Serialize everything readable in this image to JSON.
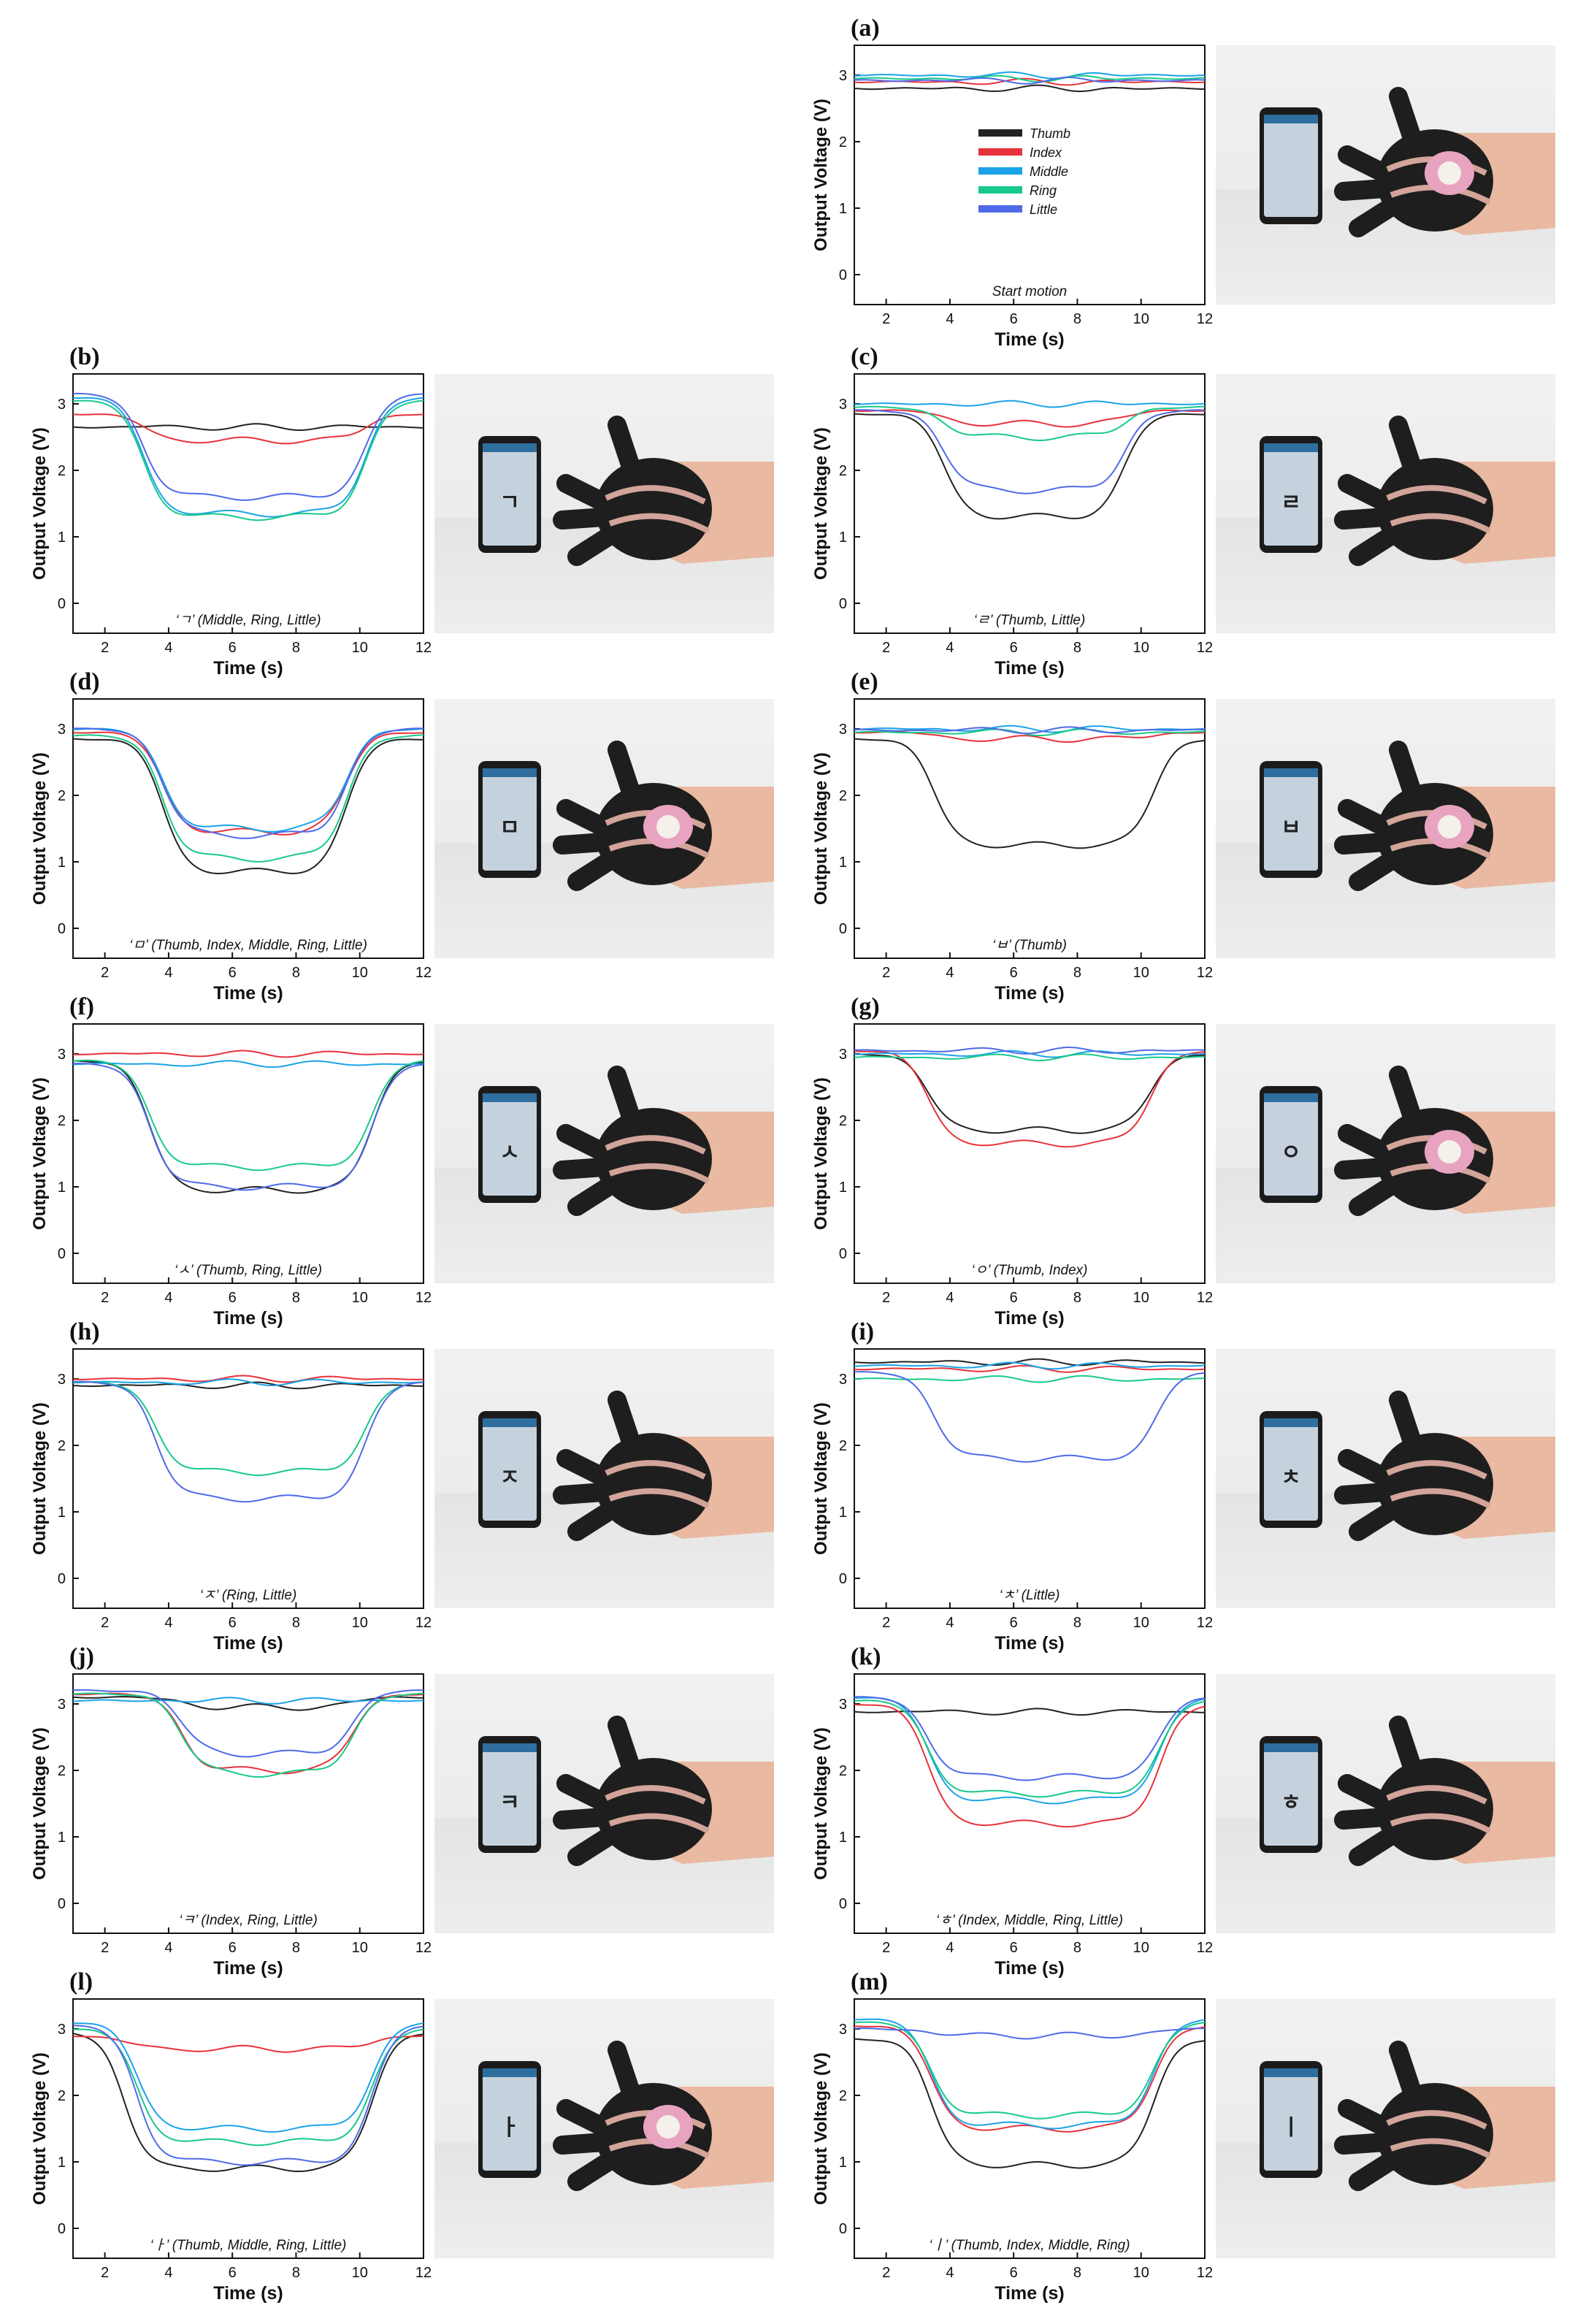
{
  "common": {
    "ylabel": "Output Voltage (V)",
    "xlabel": "Time (s)",
    "xticks": [
      "2",
      "4",
      "6",
      "8",
      "10",
      "12"
    ],
    "yticks": [
      "0",
      "1",
      "2",
      "3"
    ],
    "xlim": [
      1,
      12
    ],
    "ylim": [
      -0.45,
      3.45
    ],
    "colors": {
      "thumb": "#222222",
      "index": "#e8323b",
      "middle": "#1aa3e8",
      "ring": "#17c98a",
      "little": "#4f6ae8"
    }
  },
  "legend": [
    {
      "name": "Thumb",
      "color": "#222222"
    },
    {
      "name": "Index",
      "color": "#e8323b"
    },
    {
      "name": "Middle",
      "color": "#1aa3e8"
    },
    {
      "name": "Ring",
      "color": "#17c98a"
    },
    {
      "name": "Little",
      "color": "#4f6ae8"
    }
  ],
  "chart_data": [
    {
      "letter": "(a)",
      "type": "line",
      "annotation": "Start motion",
      "glyph": "",
      "series": [
        {
          "key": "thumb",
          "base": 2.8,
          "dip": 2.8,
          "t1": 4,
          "t2": 9
        },
        {
          "key": "index",
          "base": 2.9,
          "dip": 2.9,
          "t1": 4,
          "t2": 9
        },
        {
          "key": "middle",
          "base": 3.0,
          "dip": 3.0,
          "t1": 4,
          "t2": 9
        },
        {
          "key": "ring",
          "base": 2.95,
          "dip": 2.95,
          "t1": 4,
          "t2": 9
        },
        {
          "key": "little",
          "base": 2.92,
          "dip": 2.92,
          "t1": 4,
          "t2": 9
        }
      ]
    },
    {
      "letter": "(b)",
      "type": "line",
      "annotation": "‘ㄱ’ (Middle, Ring, Little)",
      "glyph": "ㄱ",
      "series": [
        {
          "key": "thumb",
          "base": 2.65,
          "dip": 2.65,
          "t1": 3.2,
          "t2": 10.2
        },
        {
          "key": "index",
          "base": 2.85,
          "dip": 2.45,
          "t1": 3.2,
          "t2": 10.2
        },
        {
          "key": "middle",
          "base": 3.1,
          "dip": 1.35,
          "t1": 3.2,
          "t2": 10.2
        },
        {
          "key": "ring",
          "base": 3.05,
          "dip": 1.3,
          "t1": 3.2,
          "t2": 10.2
        },
        {
          "key": "little",
          "base": 3.15,
          "dip": 1.6,
          "t1": 3.2,
          "t2": 10.2
        }
      ]
    },
    {
      "letter": "(c)",
      "type": "line",
      "annotation": "‘ㄹ’ (Thumb, Little)",
      "glyph": "ㄹ",
      "series": [
        {
          "key": "thumb",
          "base": 2.85,
          "dip": 1.3,
          "t1": 3.8,
          "t2": 9.5
        },
        {
          "key": "index",
          "base": 2.9,
          "dip": 2.7,
          "t1": 3.8,
          "t2": 9.5
        },
        {
          "key": "middle",
          "base": 3.0,
          "dip": 3.0,
          "t1": 3.8,
          "t2": 9.5
        },
        {
          "key": "ring",
          "base": 2.95,
          "dip": 2.5,
          "t1": 3.8,
          "t2": 9.5
        },
        {
          "key": "little",
          "base": 2.9,
          "dip": 1.7,
          "t1": 3.8,
          "t2": 9.5
        }
      ]
    },
    {
      "letter": "(d)",
      "type": "line",
      "annotation": "‘ㅁ’ (Thumb, Index, Middle, Ring, Little)",
      "glyph": "ㅁ",
      "series": [
        {
          "key": "thumb",
          "base": 2.85,
          "dip": 0.85,
          "t1": 3.8,
          "t2": 9.6
        },
        {
          "key": "index",
          "base": 2.95,
          "dip": 1.45,
          "t1": 3.8,
          "t2": 9.6
        },
        {
          "key": "middle",
          "base": 3.0,
          "dip": 1.5,
          "t1": 3.8,
          "t2": 9.6
        },
        {
          "key": "ring",
          "base": 2.9,
          "dip": 1.05,
          "t1": 3.8,
          "t2": 9.6
        },
        {
          "key": "little",
          "base": 3.0,
          "dip": 1.4,
          "t1": 3.8,
          "t2": 9.6
        }
      ]
    },
    {
      "letter": "(e)",
      "type": "line",
      "annotation": "‘ㅂ’ (Thumb)",
      "glyph": "ㅂ",
      "series": [
        {
          "key": "thumb",
          "base": 2.85,
          "dip": 1.25,
          "t1": 3.5,
          "t2": 10.4
        },
        {
          "key": "index",
          "base": 2.95,
          "dip": 2.85,
          "t1": 3.5,
          "t2": 10.4
        },
        {
          "key": "middle",
          "base": 3.0,
          "dip": 3.0,
          "t1": 3.5,
          "t2": 10.4
        },
        {
          "key": "ring",
          "base": 2.95,
          "dip": 2.95,
          "t1": 3.5,
          "t2": 10.4
        },
        {
          "key": "little",
          "base": 2.98,
          "dip": 2.98,
          "t1": 3.5,
          "t2": 10.4
        }
      ]
    },
    {
      "letter": "(f)",
      "type": "line",
      "annotation": "‘ㅅ’ (Thumb, Ring, Little)",
      "glyph": "ㅅ",
      "series": [
        {
          "key": "thumb",
          "base": 2.9,
          "dip": 0.95,
          "t1": 3.4,
          "t2": 10.4
        },
        {
          "key": "index",
          "base": 3.0,
          "dip": 3.0,
          "t1": 3.4,
          "t2": 10.4
        },
        {
          "key": "middle",
          "base": 2.85,
          "dip": 2.85,
          "t1": 3.4,
          "t2": 10.4
        },
        {
          "key": "ring",
          "base": 2.9,
          "dip": 1.3,
          "t1": 3.4,
          "t2": 10.4
        },
        {
          "key": "little",
          "base": 2.85,
          "dip": 1.0,
          "t1": 3.4,
          "t2": 10.4
        }
      ]
    },
    {
      "letter": "(g)",
      "type": "line",
      "annotation": "‘ㅇ’ (Thumb, Index)",
      "glyph": "ㅇ",
      "series": [
        {
          "key": "thumb",
          "base": 3.0,
          "dip": 1.85,
          "t1": 3.3,
          "t2": 10.3
        },
        {
          "key": "index",
          "base": 3.05,
          "dip": 1.65,
          "t1": 3.3,
          "t2": 10.3
        },
        {
          "key": "middle",
          "base": 3.0,
          "dip": 3.0,
          "t1": 3.3,
          "t2": 10.3
        },
        {
          "key": "ring",
          "base": 2.95,
          "dip": 2.95,
          "t1": 3.3,
          "t2": 10.3
        },
        {
          "key": "little",
          "base": 3.05,
          "dip": 3.05,
          "t1": 3.3,
          "t2": 10.3
        }
      ]
    },
    {
      "letter": "(h)",
      "type": "line",
      "annotation": "‘ㅈ’ (Ring, Little)",
      "glyph": "ㅈ",
      "series": [
        {
          "key": "thumb",
          "base": 2.9,
          "dip": 2.9,
          "t1": 3.6,
          "t2": 10.2
        },
        {
          "key": "index",
          "base": 3.0,
          "dip": 3.0,
          "t1": 3.6,
          "t2": 10.2
        },
        {
          "key": "middle",
          "base": 2.95,
          "dip": 2.95,
          "t1": 3.6,
          "t2": 10.2
        },
        {
          "key": "ring",
          "base": 2.95,
          "dip": 1.6,
          "t1": 3.6,
          "t2": 10.2
        },
        {
          "key": "little",
          "base": 2.95,
          "dip": 1.2,
          "t1": 3.6,
          "t2": 10.2
        }
      ]
    },
    {
      "letter": "(i)",
      "type": "line",
      "annotation": "‘ㅊ’ (Little)",
      "glyph": "ㅊ",
      "series": [
        {
          "key": "thumb",
          "base": 3.25,
          "dip": 3.25,
          "t1": 3.5,
          "t2": 10.5
        },
        {
          "key": "index",
          "base": 3.15,
          "dip": 3.15,
          "t1": 3.5,
          "t2": 10.5
        },
        {
          "key": "middle",
          "base": 3.2,
          "dip": 3.2,
          "t1": 3.5,
          "t2": 10.5
        },
        {
          "key": "ring",
          "base": 3.0,
          "dip": 3.0,
          "t1": 3.5,
          "t2": 10.5
        },
        {
          "key": "little",
          "base": 3.1,
          "dip": 1.8,
          "t1": 3.5,
          "t2": 10.5
        }
      ]
    },
    {
      "letter": "(j)",
      "type": "line",
      "annotation": "‘ㅋ’ (Index, Ring, Little)",
      "glyph": "ㅋ",
      "series": [
        {
          "key": "thumb",
          "base": 3.1,
          "dip": 2.95,
          "t1": 4.4,
          "t2": 9.8
        },
        {
          "key": "index",
          "base": 3.15,
          "dip": 2.0,
          "t1": 4.4,
          "t2": 9.8
        },
        {
          "key": "middle",
          "base": 3.05,
          "dip": 3.05,
          "t1": 4.4,
          "t2": 9.8
        },
        {
          "key": "ring",
          "base": 3.15,
          "dip": 1.95,
          "t1": 4.4,
          "t2": 9.8
        },
        {
          "key": "little",
          "base": 3.2,
          "dip": 2.25,
          "t1": 4.4,
          "t2": 9.8
        }
      ]
    },
    {
      "letter": "(k)",
      "type": "line",
      "annotation": "‘ㅎ’ (Index, Middle, Ring, Little)",
      "glyph": "ㅎ",
      "series": [
        {
          "key": "thumb",
          "base": 2.88,
          "dip": 2.88,
          "t1": 3.3,
          "t2": 10.6
        },
        {
          "key": "index",
          "base": 3.0,
          "dip": 1.2,
          "t1": 3.3,
          "t2": 10.6
        },
        {
          "key": "middle",
          "base": 3.1,
          "dip": 1.55,
          "t1": 3.3,
          "t2": 10.6
        },
        {
          "key": "ring",
          "base": 3.05,
          "dip": 1.65,
          "t1": 3.3,
          "t2": 10.6
        },
        {
          "key": "little",
          "base": 3.1,
          "dip": 1.9,
          "t1": 3.3,
          "t2": 10.6
        }
      ]
    },
    {
      "letter": "(l)",
      "type": "line",
      "annotation": "‘ㅏ’ (Thumb, Middle, Ring, Little)",
      "glyph": "ㅏ",
      "series": [
        {
          "key": "thumb",
          "base": 2.95,
          "dip": 0.9,
          "t1": 2.6,
          "t2": 10.4
        },
        {
          "key": "index",
          "base": 2.9,
          "dip": 2.7,
          "t1": 2.6,
          "t2": 10.4
        },
        {
          "key": "middle",
          "base": 3.1,
          "dip": 1.5,
          "t1": 3.0,
          "t2": 10.4
        },
        {
          "key": "ring",
          "base": 3.0,
          "dip": 1.3,
          "t1": 3.0,
          "t2": 10.4
        },
        {
          "key": "little",
          "base": 3.05,
          "dip": 1.0,
          "t1": 3.0,
          "t2": 10.4
        }
      ]
    },
    {
      "letter": "(m)",
      "type": "line",
      "annotation": "‘ㅣ’ (Thumb, Index, Middle, Ring)",
      "glyph": "ㅣ",
      "series": [
        {
          "key": "thumb",
          "base": 2.85,
          "dip": 0.95,
          "t1": 3.4,
          "t2": 10.4
        },
        {
          "key": "index",
          "base": 3.05,
          "dip": 1.5,
          "t1": 3.4,
          "t2": 10.4
        },
        {
          "key": "middle",
          "base": 3.15,
          "dip": 1.55,
          "t1": 3.4,
          "t2": 10.4
        },
        {
          "key": "ring",
          "base": 3.1,
          "dip": 1.7,
          "t1": 3.4,
          "t2": 10.4
        },
        {
          "key": "little",
          "base": 3.0,
          "dip": 2.9,
          "t1": 3.4,
          "t2": 10.4
        }
      ]
    }
  ]
}
